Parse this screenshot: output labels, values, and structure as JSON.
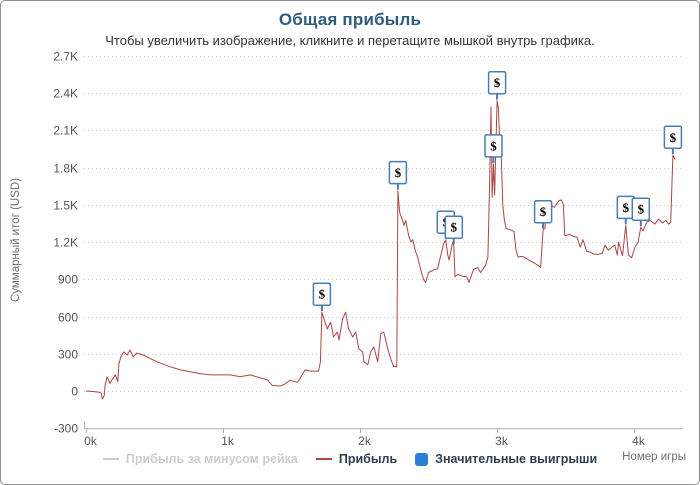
{
  "page": {
    "title": "Общая прибыль",
    "subtitle": "Чтобы увеличить изображение, кликните и перетащите мышкой внутрь графика."
  },
  "legend": {
    "items": [
      {
        "label": "Прибыль за минусом рейка",
        "marker": "line",
        "color": "#cccccc",
        "text_color": "#cccccc",
        "disabled": true
      },
      {
        "label": "Прибыль",
        "marker": "line",
        "color": "#aa4643",
        "text_color": "#2c3e50",
        "disabled": false
      },
      {
        "label": "Значительные выигрыши",
        "marker": "square",
        "color": "#2a7ed8",
        "text_color": "#2c3e50",
        "disabled": false
      }
    ]
  },
  "chart_data": {
    "type": "line",
    "title": "Общая прибыль",
    "subtitle": "Чтобы увеличить изображение, кликните и перетащите мышкой внутрь графика.",
    "xlabel": "Номер игры",
    "ylabel": "Суммарный итог (USD)",
    "xlim": [
      0,
      4360
    ],
    "ylim": [
      -300,
      2700
    ],
    "grid": "horizontal-dotted",
    "legend_position": "bottom-center",
    "xticks": [
      {
        "value": 0,
        "label": "0k"
      },
      {
        "value": 1000,
        "label": "1k"
      },
      {
        "value": 2000,
        "label": "2k"
      },
      {
        "value": 3000,
        "label": "3k"
      },
      {
        "value": 4000,
        "label": "4k"
      }
    ],
    "yticks": [
      {
        "value": 2700,
        "label": "2.7K"
      },
      {
        "value": 2400,
        "label": "2.4K"
      },
      {
        "value": 2100,
        "label": "2.1K"
      },
      {
        "value": 1800,
        "label": "1.8K"
      },
      {
        "value": 1500,
        "label": "1.5K"
      },
      {
        "value": 1200,
        "label": "1.2K"
      },
      {
        "value": 900,
        "label": "900"
      },
      {
        "value": 600,
        "label": "600"
      },
      {
        "value": 300,
        "label": "300"
      },
      {
        "value": 0,
        "label": "0"
      },
      {
        "value": -300,
        "label": "-300"
      }
    ],
    "series": [
      {
        "name": "Прибыль за минусом рейка",
        "color": "#cccccc",
        "visible": false,
        "points": []
      },
      {
        "name": "Прибыль",
        "color": "#aa4643",
        "visible": true,
        "points": [
          [
            0,
            0
          ],
          [
            60,
            -5
          ],
          [
            95,
            -10
          ],
          [
            110,
            -15
          ],
          [
            120,
            -65
          ],
          [
            132,
            -40
          ],
          [
            140,
            50
          ],
          [
            155,
            115
          ],
          [
            175,
            60
          ],
          [
            195,
            100
          ],
          [
            215,
            130
          ],
          [
            232,
            75
          ],
          [
            240,
            220
          ],
          [
            255,
            275
          ],
          [
            275,
            315
          ],
          [
            300,
            290
          ],
          [
            322,
            330
          ],
          [
            345,
            275
          ],
          [
            370,
            305
          ],
          [
            420,
            290
          ],
          [
            470,
            260
          ],
          [
            520,
            235
          ],
          [
            565,
            215
          ],
          [
            615,
            195
          ],
          [
            690,
            170
          ],
          [
            760,
            155
          ],
          [
            835,
            140
          ],
          [
            905,
            130
          ],
          [
            980,
            130
          ],
          [
            1055,
            130
          ],
          [
            1125,
            115
          ],
          [
            1200,
            130
          ],
          [
            1275,
            105
          ],
          [
            1325,
            90
          ],
          [
            1360,
            45
          ],
          [
            1420,
            40
          ],
          [
            1450,
            55
          ],
          [
            1490,
            85
          ],
          [
            1545,
            70
          ],
          [
            1600,
            170
          ],
          [
            1640,
            160
          ],
          [
            1698,
            160
          ],
          [
            1712,
            235
          ],
          [
            1723,
            635
          ],
          [
            1738,
            580
          ],
          [
            1762,
            500
          ],
          [
            1786,
            555
          ],
          [
            1808,
            435
          ],
          [
            1836,
            475
          ],
          [
            1848,
            410
          ],
          [
            1874,
            580
          ],
          [
            1896,
            635
          ],
          [
            1918,
            500
          ],
          [
            1948,
            435
          ],
          [
            1970,
            475
          ],
          [
            1992,
            340
          ],
          [
            2020,
            315
          ],
          [
            2030,
            235
          ],
          [
            2058,
            210
          ],
          [
            2080,
            315
          ],
          [
            2102,
            355
          ],
          [
            2130,
            235
          ],
          [
            2152,
            460
          ],
          [
            2174,
            475
          ],
          [
            2204,
            340
          ],
          [
            2226,
            255
          ],
          [
            2248,
            195
          ],
          [
            2270,
            195
          ],
          [
            2278,
            1615
          ],
          [
            2290,
            1440
          ],
          [
            2312,
            1375
          ],
          [
            2322,
            1335
          ],
          [
            2335,
            1375
          ],
          [
            2356,
            1255
          ],
          [
            2372,
            1200
          ],
          [
            2386,
            1220
          ],
          [
            2408,
            1120
          ],
          [
            2422,
            1080
          ],
          [
            2445,
            975
          ],
          [
            2466,
            895
          ],
          [
            2480,
            875
          ],
          [
            2502,
            955
          ],
          [
            2538,
            975
          ],
          [
            2568,
            985
          ],
          [
            2612,
            1190
          ],
          [
            2628,
            1215
          ],
          [
            2642,
            1095
          ],
          [
            2652,
            1055
          ],
          [
            2678,
            1200
          ],
          [
            2686,
            1175
          ],
          [
            2695,
            920
          ],
          [
            2715,
            940
          ],
          [
            2750,
            925
          ],
          [
            2780,
            920
          ],
          [
            2798,
            875
          ],
          [
            2830,
            980
          ],
          [
            2860,
            995
          ],
          [
            2882,
            955
          ],
          [
            2918,
            1015
          ],
          [
            2935,
            1080
          ],
          [
            2948,
            1700
          ],
          [
            2958,
            2290
          ],
          [
            2966,
            1560
          ],
          [
            2976,
            1830
          ],
          [
            2984,
            1580
          ],
          [
            3002,
            2340
          ],
          [
            3012,
            2280
          ],
          [
            3022,
            1990
          ],
          [
            3034,
            1855
          ],
          [
            3044,
            1500
          ],
          [
            3056,
            1375
          ],
          [
            3068,
            1310
          ],
          [
            3108,
            1295
          ],
          [
            3126,
            1285
          ],
          [
            3140,
            1140
          ],
          [
            3155,
            1080
          ],
          [
            3178,
            1085
          ],
          [
            3200,
            1080
          ],
          [
            3235,
            1055
          ],
          [
            3268,
            1035
          ],
          [
            3305,
            1010
          ],
          [
            3320,
            995
          ],
          [
            3338,
            1300
          ],
          [
            3352,
            1310
          ],
          [
            3362,
            1480
          ],
          [
            3392,
            1500
          ],
          [
            3420,
            1480
          ],
          [
            3455,
            1535
          ],
          [
            3470,
            1540
          ],
          [
            3486,
            1505
          ],
          [
            3497,
            1250
          ],
          [
            3530,
            1262
          ],
          [
            3560,
            1245
          ],
          [
            3586,
            1240
          ],
          [
            3610,
            1160
          ],
          [
            3630,
            1220
          ],
          [
            3656,
            1125
          ],
          [
            3680,
            1120
          ],
          [
            3706,
            1105
          ],
          [
            3740,
            1100
          ],
          [
            3770,
            1110
          ],
          [
            3790,
            1175
          ],
          [
            3815,
            1135
          ],
          [
            3840,
            1160
          ],
          [
            3862,
            1175
          ],
          [
            3880,
            1095
          ],
          [
            3890,
            1200
          ],
          [
            3905,
            1140
          ],
          [
            3918,
            1090
          ],
          [
            3942,
            1335
          ],
          [
            3952,
            1215
          ],
          [
            3962,
            1095
          ],
          [
            3985,
            1075
          ],
          [
            4010,
            1160
          ],
          [
            4032,
            1200
          ],
          [
            4052,
            1320
          ],
          [
            4068,
            1290
          ],
          [
            4095,
            1360
          ],
          [
            4120,
            1375
          ],
          [
            4155,
            1345
          ],
          [
            4180,
            1385
          ],
          [
            4210,
            1355
          ],
          [
            4235,
            1375
          ],
          [
            4255,
            1345
          ],
          [
            4270,
            1360
          ],
          [
            4286,
            1900
          ],
          [
            4302,
            1865
          ]
        ]
      }
    ],
    "flags": {
      "name": "Значительные выигрыши",
      "label": "$",
      "color": "#2a7ed8",
      "border_color": "#4a7cb8",
      "points": [
        [
          1723,
          635
        ],
        [
          2278,
          1615
        ],
        [
          2628,
          1215
        ],
        [
          2686,
          1175
        ],
        [
          2976,
          1830
        ],
        [
          3002,
          2340
        ],
        [
          3338,
          1300
        ],
        [
          3942,
          1335
        ],
        [
          4052,
          1320
        ],
        [
          4286,
          1900
        ]
      ]
    },
    "style": {
      "gridline_color": "#cccccc",
      "axis_line_color": "#b0b0b0",
      "tick_label_color": "#555555"
    }
  }
}
